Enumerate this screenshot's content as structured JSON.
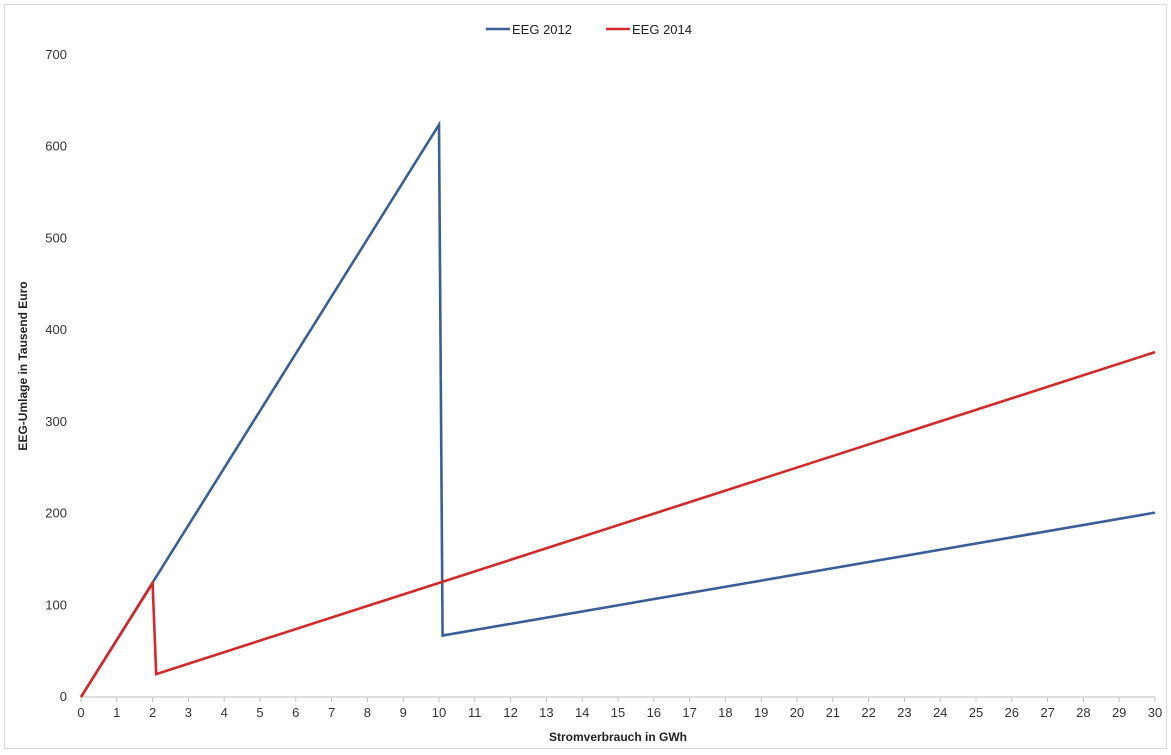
{
  "chart_data": {
    "type": "line",
    "title": "",
    "xlabel": "Stromverbrauch in GWh",
    "ylabel": "EEG-Umlage in Tausend  Euro",
    "xlim": [
      0,
      30
    ],
    "ylim": [
      0,
      700
    ],
    "x_ticks": [
      0,
      1,
      2,
      3,
      4,
      5,
      6,
      7,
      8,
      9,
      10,
      11,
      12,
      13,
      14,
      15,
      16,
      17,
      18,
      19,
      20,
      21,
      22,
      23,
      24,
      25,
      26,
      27,
      28,
      29,
      30
    ],
    "y_ticks": [
      0,
      100,
      200,
      300,
      400,
      500,
      600,
      700
    ],
    "grid": false,
    "legend_position": "top-center",
    "series": [
      {
        "name": "EEG 2012",
        "color": "#3a5f97",
        "points": [
          [
            0,
            0
          ],
          [
            10,
            624
          ],
          [
            10.1,
            67
          ],
          [
            30,
            201
          ]
        ]
      },
      {
        "name": "EEG 2014",
        "color": "#d22a2a",
        "points": [
          [
            0,
            0
          ],
          [
            2,
            124
          ],
          [
            2.1,
            25
          ],
          [
            30,
            376
          ]
        ]
      }
    ]
  }
}
